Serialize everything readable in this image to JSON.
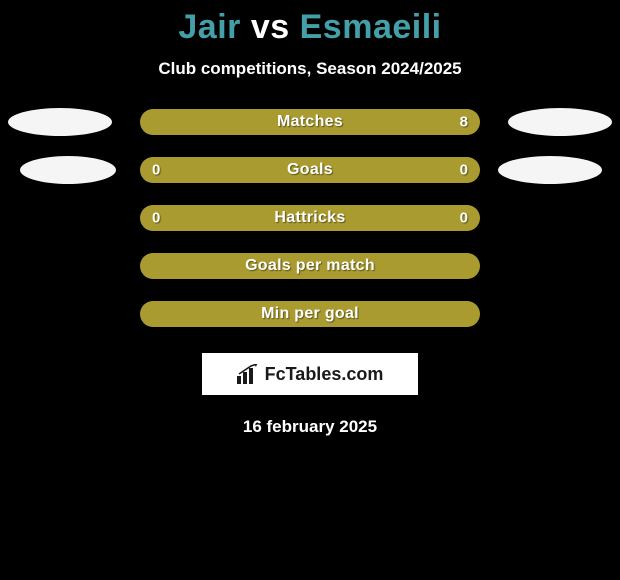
{
  "title": {
    "player1": "Jair",
    "vs": "vs",
    "player2": "Esmaeili"
  },
  "subtitle": "Club competitions, Season 2024/2025",
  "rows": [
    {
      "label": "Matches",
      "left_value": "",
      "right_value": "8",
      "bar_color": "#a99b2f",
      "show_left_oval": true,
      "show_right_oval": true,
      "left_oval_shifted": false,
      "right_oval_shifted": false
    },
    {
      "label": "Goals",
      "left_value": "0",
      "right_value": "0",
      "bar_color": "#a99b2f",
      "show_left_oval": true,
      "show_right_oval": true,
      "left_oval_shifted": true,
      "right_oval_shifted": true
    },
    {
      "label": "Hattricks",
      "left_value": "0",
      "right_value": "0",
      "bar_color": "#a99b2f",
      "show_left_oval": false,
      "show_right_oval": false
    },
    {
      "label": "Goals per match",
      "left_value": "",
      "right_value": "",
      "bar_color": "#a99b2f",
      "show_left_oval": false,
      "show_right_oval": false
    },
    {
      "label": "Min per goal",
      "left_value": "",
      "right_value": "",
      "bar_color": "#a99b2f",
      "show_left_oval": false,
      "show_right_oval": false
    }
  ],
  "logo": {
    "text": "FcTables.com"
  },
  "date": "16 february 2025",
  "colors": {
    "background": "#000000",
    "accent": "#43a0a8",
    "bar": "#a99b2f",
    "text": "#ffffff",
    "oval": "#f5f5f5"
  }
}
